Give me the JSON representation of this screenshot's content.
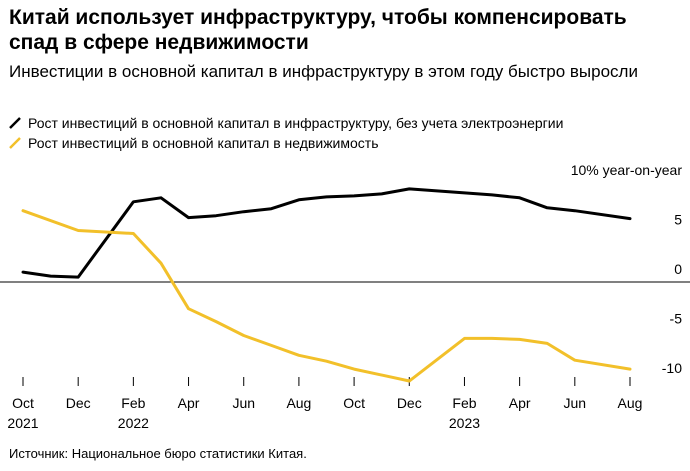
{
  "title": "Китай использует инфраструктуру, чтобы компенсировать спад в сфере недвижимости",
  "subtitle": "Инвестиции в основной капитал в инфраструктуру в этом году быстро выросли",
  "source": "Источник: Национальное бюро статистики Китая.",
  "colors": {
    "infrastructure": "#000000",
    "real_estate": "#f2c02a",
    "zero_line": "#000000"
  },
  "chart_data": {
    "type": "line",
    "title": "",
    "ylabel": "10% year-on-year",
    "ylim": [
      -11,
      11
    ],
    "yticks": [
      {
        "value": 10,
        "label": "10% year-on-year"
      },
      {
        "value": 5,
        "label": "5"
      },
      {
        "value": 0,
        "label": "0"
      },
      {
        "value": -5,
        "label": "-5"
      },
      {
        "value": -10,
        "label": "-10"
      }
    ],
    "x": [
      "2021-10",
      "2021-11",
      "2021-12",
      "2022-01",
      "2022-02",
      "2022-03",
      "2022-04",
      "2022-05",
      "2022-06",
      "2022-07",
      "2022-08",
      "2022-09",
      "2022-10",
      "2022-11",
      "2022-12",
      "2023-01",
      "2023-02",
      "2023-03",
      "2023-04",
      "2023-05",
      "2023-06",
      "2023-07",
      "2023-08"
    ],
    "xticks": [
      {
        "index": 0,
        "label": "Oct",
        "sublabel": "2021"
      },
      {
        "index": 2,
        "label": "Dec",
        "sublabel": ""
      },
      {
        "index": 4,
        "label": "Feb",
        "sublabel": "2022"
      },
      {
        "index": 6,
        "label": "Apr",
        "sublabel": ""
      },
      {
        "index": 8,
        "label": "Jun",
        "sublabel": ""
      },
      {
        "index": 10,
        "label": "Aug",
        "sublabel": ""
      },
      {
        "index": 12,
        "label": "Oct",
        "sublabel": ""
      },
      {
        "index": 14,
        "label": "Dec",
        "sublabel": ""
      },
      {
        "index": 16,
        "label": "Feb",
        "sublabel": "2023"
      },
      {
        "index": 18,
        "label": "Apr",
        "sublabel": ""
      },
      {
        "index": 20,
        "label": "Jun",
        "sublabel": ""
      },
      {
        "index": 22,
        "label": "Aug",
        "sublabel": ""
      }
    ],
    "series": [
      {
        "name": "Рост инвестиций в основной капитал в инфраструктуру, без учета электроэнергии",
        "color": "#000000",
        "values": [
          1.0,
          0.6,
          0.5,
          null,
          8.1,
          8.5,
          6.5,
          6.7,
          7.1,
          7.4,
          8.3,
          8.6,
          8.7,
          8.9,
          9.4,
          null,
          9.0,
          8.8,
          8.5,
          7.5,
          7.2,
          null,
          6.4
        ]
      },
      {
        "name": "Рост инвестиций в основной капитал в недвижимость",
        "color": "#f2c02a",
        "values": [
          7.2,
          null,
          5.2,
          null,
          4.9,
          1.9,
          -2.7,
          -4.0,
          -5.4,
          -6.4,
          -7.4,
          -8.0,
          -8.8,
          null,
          -10.0,
          null,
          -5.7,
          -5.7,
          -5.8,
          -6.2,
          -7.9,
          null,
          -8.8
        ]
      }
    ]
  }
}
